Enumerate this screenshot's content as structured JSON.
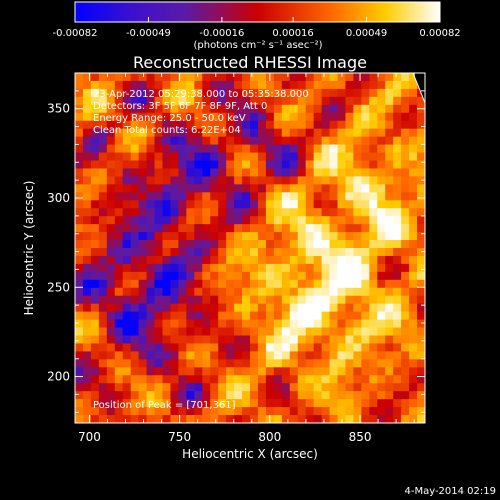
{
  "colorbar": {
    "tick_labels": [
      "-0.00082",
      "-0.00049",
      "-0.00016",
      "0.00016",
      "0.00049",
      "0.00082"
    ],
    "tick_values": [
      -0.00082,
      -0.00049,
      -0.00016,
      0.00016,
      0.00049,
      0.00082
    ],
    "units_text": "(photons cm⁻² s⁻¹ asec⁻²)",
    "range": [
      -0.00082,
      0.00082
    ]
  },
  "chart_data": {
    "type": "heatmap",
    "title": "Reconstructed RHESSI Image",
    "xlabel": "Heliocentric X (arcsec)",
    "ylabel": "Heliocentric Y (arcsec)",
    "xlim": [
      692,
      886
    ],
    "ylim": [
      174,
      370
    ],
    "x_ticks": [
      700,
      750,
      800,
      850
    ],
    "y_ticks": [
      200,
      250,
      300,
      350
    ],
    "colormap": "blue-purple-red-orange-yellow-white",
    "colormap_stops": [
      "#0000ff",
      "#5a1aa8",
      "#cc0000",
      "#ff6600",
      "#ffcc00",
      "#ffffff"
    ],
    "annotations": [
      "23-Apr-2012 05:29:38.000 to 05:35:38.000",
      "Detectors: 3F 5F 6F 7F 8F 9F, Att 0",
      "Energy Range: 25.0 - 50.0 keV",
      "Clean     Total counts: 6.22E+04"
    ],
    "peak_label": "Position of Peak = [701,361]",
    "peak_position": [
      701,
      361
    ]
  },
  "footer": {
    "timestamp": "4-May-2014 02:19"
  }
}
